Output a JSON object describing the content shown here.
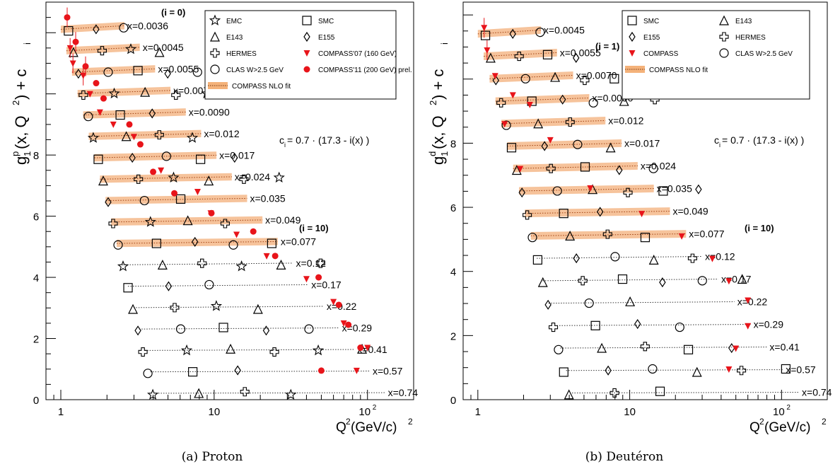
{
  "panels": [
    {
      "caption": "(a) Proton",
      "ylabel_main": "g",
      "ylabel_sub": "1",
      "ylabel_sup": "p",
      "ylabel_rest": "(x, Q",
      "ylabel_rest2": ") + c",
      "ylabel_i": "i",
      "xlabel": "Q",
      "xlabel_rest": " (GeV/c)",
      "formula": "c",
      "formula_sub": "i",
      "formula_rest": " = 0.7 · (17.3 - i(x) )",
      "i0_label": "(i = 0)",
      "i10_label": "(i = 10)",
      "legend": [
        {
          "marker": "star",
          "label": "EMC",
          "color": "#000000"
        },
        {
          "marker": "square",
          "label": "SMC",
          "color": "#000000"
        },
        {
          "marker": "triangle",
          "label": "E143",
          "color": "#000000"
        },
        {
          "marker": "diamond",
          "label": "E155",
          "color": "#000000"
        },
        {
          "marker": "cross",
          "label": "HERMES",
          "color": "#000000"
        },
        {
          "marker": "tri-down",
          "label": "COMPASS'07 (160 GeV)",
          "color": "#e8141a"
        },
        {
          "marker": "circle",
          "label": "CLAS W>2.5 GeV",
          "color": "#000000"
        },
        {
          "marker": "dot",
          "label": "COMPASS'11 (200 GeV) prel.",
          "color": "#e8141a"
        },
        {
          "marker": "band",
          "label": "COMPASS NLO fit",
          "color": "#f4b27a"
        }
      ]
    },
    {
      "caption": "(b) Deutéron",
      "ylabel_main": "g",
      "ylabel_sub": "1",
      "ylabel_sup": "d",
      "ylabel_rest": "(x, Q",
      "ylabel_rest2": ") + c",
      "ylabel_i": "i",
      "xlabel": "Q",
      "xlabel_rest": " (GeV/c)",
      "formula": "c",
      "formula_sub": "i",
      "formula_rest": " = 0.7 · (17.3 - i(x) )",
      "i0_label": "(i = 1)",
      "i10_label": "(i = 10)",
      "legend": [
        {
          "marker": "square",
          "label": "SMC",
          "color": "#000000"
        },
        {
          "marker": "triangle",
          "label": "E143",
          "color": "#000000"
        },
        {
          "marker": "diamond",
          "label": "E155",
          "color": "#000000"
        },
        {
          "marker": "cross",
          "label": "HERMES",
          "color": "#000000"
        },
        {
          "marker": "tri-down",
          "label": "COMPASS",
          "color": "#e8141a"
        },
        {
          "marker": "circle",
          "label": "CLAS W>2.5 GeV",
          "color": "#000000"
        },
        {
          "marker": "band",
          "label": "COMPASS NLO fit",
          "color": "#f4b27a"
        }
      ]
    }
  ],
  "chart_data": [
    {
      "type": "scatter",
      "title": "(a) Proton",
      "xlabel": "Q^2 (GeV/c)^2",
      "ylabel": "g1^p(x, Q^2) + c_i",
      "xscale": "log",
      "xlim": [
        0.8,
        200
      ],
      "ylim": [
        0,
        13
      ],
      "xticks": [
        "1",
        "10",
        "10^2"
      ],
      "yticks": [
        0,
        2,
        4,
        6,
        8
      ],
      "annotation": "c_i = 0.7 · (17.3 - i(x) )",
      "series": [
        {
          "name": "COMPASS NLO fit",
          "x_bins": [
            "x=0.0036",
            "x=0.0045",
            "x=0.0055",
            "x=0.0070",
            "x=0.0090",
            "x=0.012",
            "x=0.017",
            "x=0.024",
            "x=0.035",
            "x=0.049",
            "x=0.077",
            "x=0.12",
            "x=0.17",
            "x=0.22",
            "x=0.29",
            "x=0.41",
            "x=0.57",
            "x=0.74"
          ],
          "offsets": [
            12.11,
            11.41,
            10.71,
            10.01,
            9.31,
            8.61,
            7.91,
            7.21,
            6.51,
            5.81,
            5.11,
            4.41,
            3.71,
            3.01,
            2.31,
            1.61,
            0.91,
            0.21
          ]
        },
        {
          "name": "COMPASS'07 (160 GeV)",
          "points": [
            [
              1.15,
              11.5
            ],
            [
              1.2,
              11.0
            ],
            [
              1.4,
              10.6
            ],
            [
              1.55,
              10.0
            ],
            [
              1.8,
              9.4
            ],
            [
              2.2,
              9.0
            ],
            [
              3.0,
              8.6
            ],
            [
              4.5,
              7.5
            ],
            [
              7.8,
              6.8
            ],
            [
              9.5,
              6.1
            ],
            [
              14,
              5.4
            ],
            [
              22,
              4.7
            ],
            [
              40,
              3.95
            ],
            [
              60,
              3.2
            ],
            [
              70,
              2.5
            ],
            [
              100,
              1.7
            ],
            [
              85,
              0.95
            ]
          ]
        },
        {
          "name": "COMPASS'11 (200 GeV) prel.",
          "points": [
            [
              1.1,
              12.5
            ],
            [
              1.25,
              11.7
            ],
            [
              1.45,
              10.9
            ],
            [
              1.7,
              10.35
            ],
            [
              1.9,
              9.85
            ],
            [
              2.8,
              9.0
            ],
            [
              3.3,
              8.35
            ],
            [
              4.0,
              7.45
            ],
            [
              5.5,
              6.75
            ],
            [
              9.6,
              6.1
            ],
            [
              18,
              5.5
            ],
            [
              25,
              4.7
            ],
            [
              48,
              4.0
            ],
            [
              65,
              3.1
            ],
            [
              75,
              2.45
            ],
            [
              90,
              1.7
            ],
            [
              50,
              0.95
            ]
          ]
        }
      ],
      "x_bin_labels": [
        "x=0.0036",
        "x=0.0045",
        "x=0.0055",
        "x=0.0070",
        "x=0.0090",
        "x=0.012",
        "x=0.017",
        "x=0.024",
        "x=0.035",
        "x=0.049",
        "x=0.077",
        "x=0.12",
        "x=0.17",
        "x=0.22",
        "x=0.29",
        "x=0.41",
        "x=0.57",
        "x=0.74"
      ]
    },
    {
      "type": "scatter",
      "title": "(b) Deutéron",
      "xlabel": "Q^2 (GeV/c)^2",
      "ylabel": "g1^d(x, Q^2) + c_i",
      "xscale": "log",
      "xlim": [
        0.8,
        200
      ],
      "ylim": [
        0,
        12.4
      ],
      "xticks": [
        "1",
        "10",
        "10^2"
      ],
      "yticks": [
        0,
        2,
        4,
        6,
        8
      ],
      "annotation": "c_i = 0.7 · (17.3 - i(x) )",
      "series": [
        {
          "name": "COMPASS NLO fit",
          "x_bins": [
            "x=0.0045",
            "x=0.0055",
            "x=0.0070",
            "x=0.0090",
            "x=0.012",
            "x=0.017",
            "x=0.024",
            "x=0.035",
            "x=0.049",
            "x=0.077",
            "x=0.12",
            "x=0.17",
            "x=0.22",
            "x=0.29",
            "x=0.41",
            "x=0.57",
            "x=0.74"
          ],
          "offsets": [
            11.41,
            10.71,
            10.01,
            9.31,
            8.61,
            7.91,
            7.21,
            6.51,
            5.81,
            5.11,
            4.41,
            3.71,
            3.01,
            2.31,
            1.61,
            0.91,
            0.21
          ]
        },
        {
          "name": "COMPASS",
          "points": [
            [
              1.1,
              11.6
            ],
            [
              1.15,
              10.9
            ],
            [
              1.3,
              10.1
            ],
            [
              1.7,
              9.5
            ],
            [
              2.2,
              9.2
            ],
            [
              1.5,
              8.6
            ],
            [
              3.0,
              8.1
            ],
            [
              1.9,
              7.2
            ],
            [
              5.5,
              6.6
            ],
            [
              12,
              5.8
            ],
            [
              22,
              5.1
            ],
            [
              35,
              4.4
            ],
            [
              45,
              3.7
            ],
            [
              60,
              3.1
            ],
            [
              60,
              2.3
            ],
            [
              50,
              1.6
            ],
            [
              45,
              0.95
            ]
          ]
        }
      ],
      "x_bin_labels": [
        "x=0.0045",
        "x=0.0055",
        "x=0.0070",
        "x=0.0090",
        "x=0.012",
        "x=0.017",
        "x=0.024",
        "x=0.035",
        "x=0.049",
        "x=0.077",
        "x=0.12",
        "x=0.17",
        "x=0.22",
        "x=0.29",
        "x=0.41",
        "x=0.57",
        "x=0.74"
      ]
    }
  ]
}
